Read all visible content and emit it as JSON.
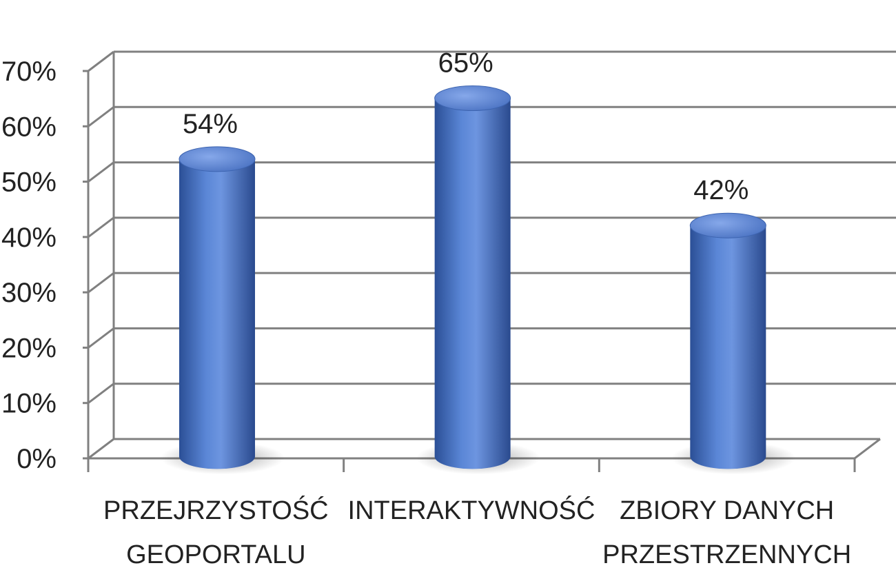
{
  "chart_data": {
    "type": "bar",
    "style": "3d-cylinder",
    "categories": [
      [
        "PRZEJRZYSTOŚĆ",
        "GEOPORTALU"
      ],
      [
        "INTERAKTYWNOŚĆ"
      ],
      [
        "ZBIORY DANYCH",
        "PRZESTRZENNYCH"
      ]
    ],
    "values": [
      54,
      65,
      42
    ],
    "data_labels": [
      "54%",
      "65%",
      "42%"
    ],
    "yticks": [
      0,
      10,
      20,
      30,
      40,
      50,
      60,
      70
    ],
    "ytick_labels": [
      "0%",
      "10%",
      "20%",
      "30%",
      "40%",
      "50%",
      "60%",
      "70%"
    ],
    "ylim": [
      0,
      70
    ],
    "grid": true,
    "legend": "none",
    "title": "",
    "xlabel": "",
    "ylabel": "",
    "colors": {
      "bar": "#4a72c2",
      "bar_dark": "#2b4f96",
      "bar_light": "#7fa3e6",
      "grid": "#808080",
      "axis": "#808080",
      "text": "#222222"
    }
  }
}
